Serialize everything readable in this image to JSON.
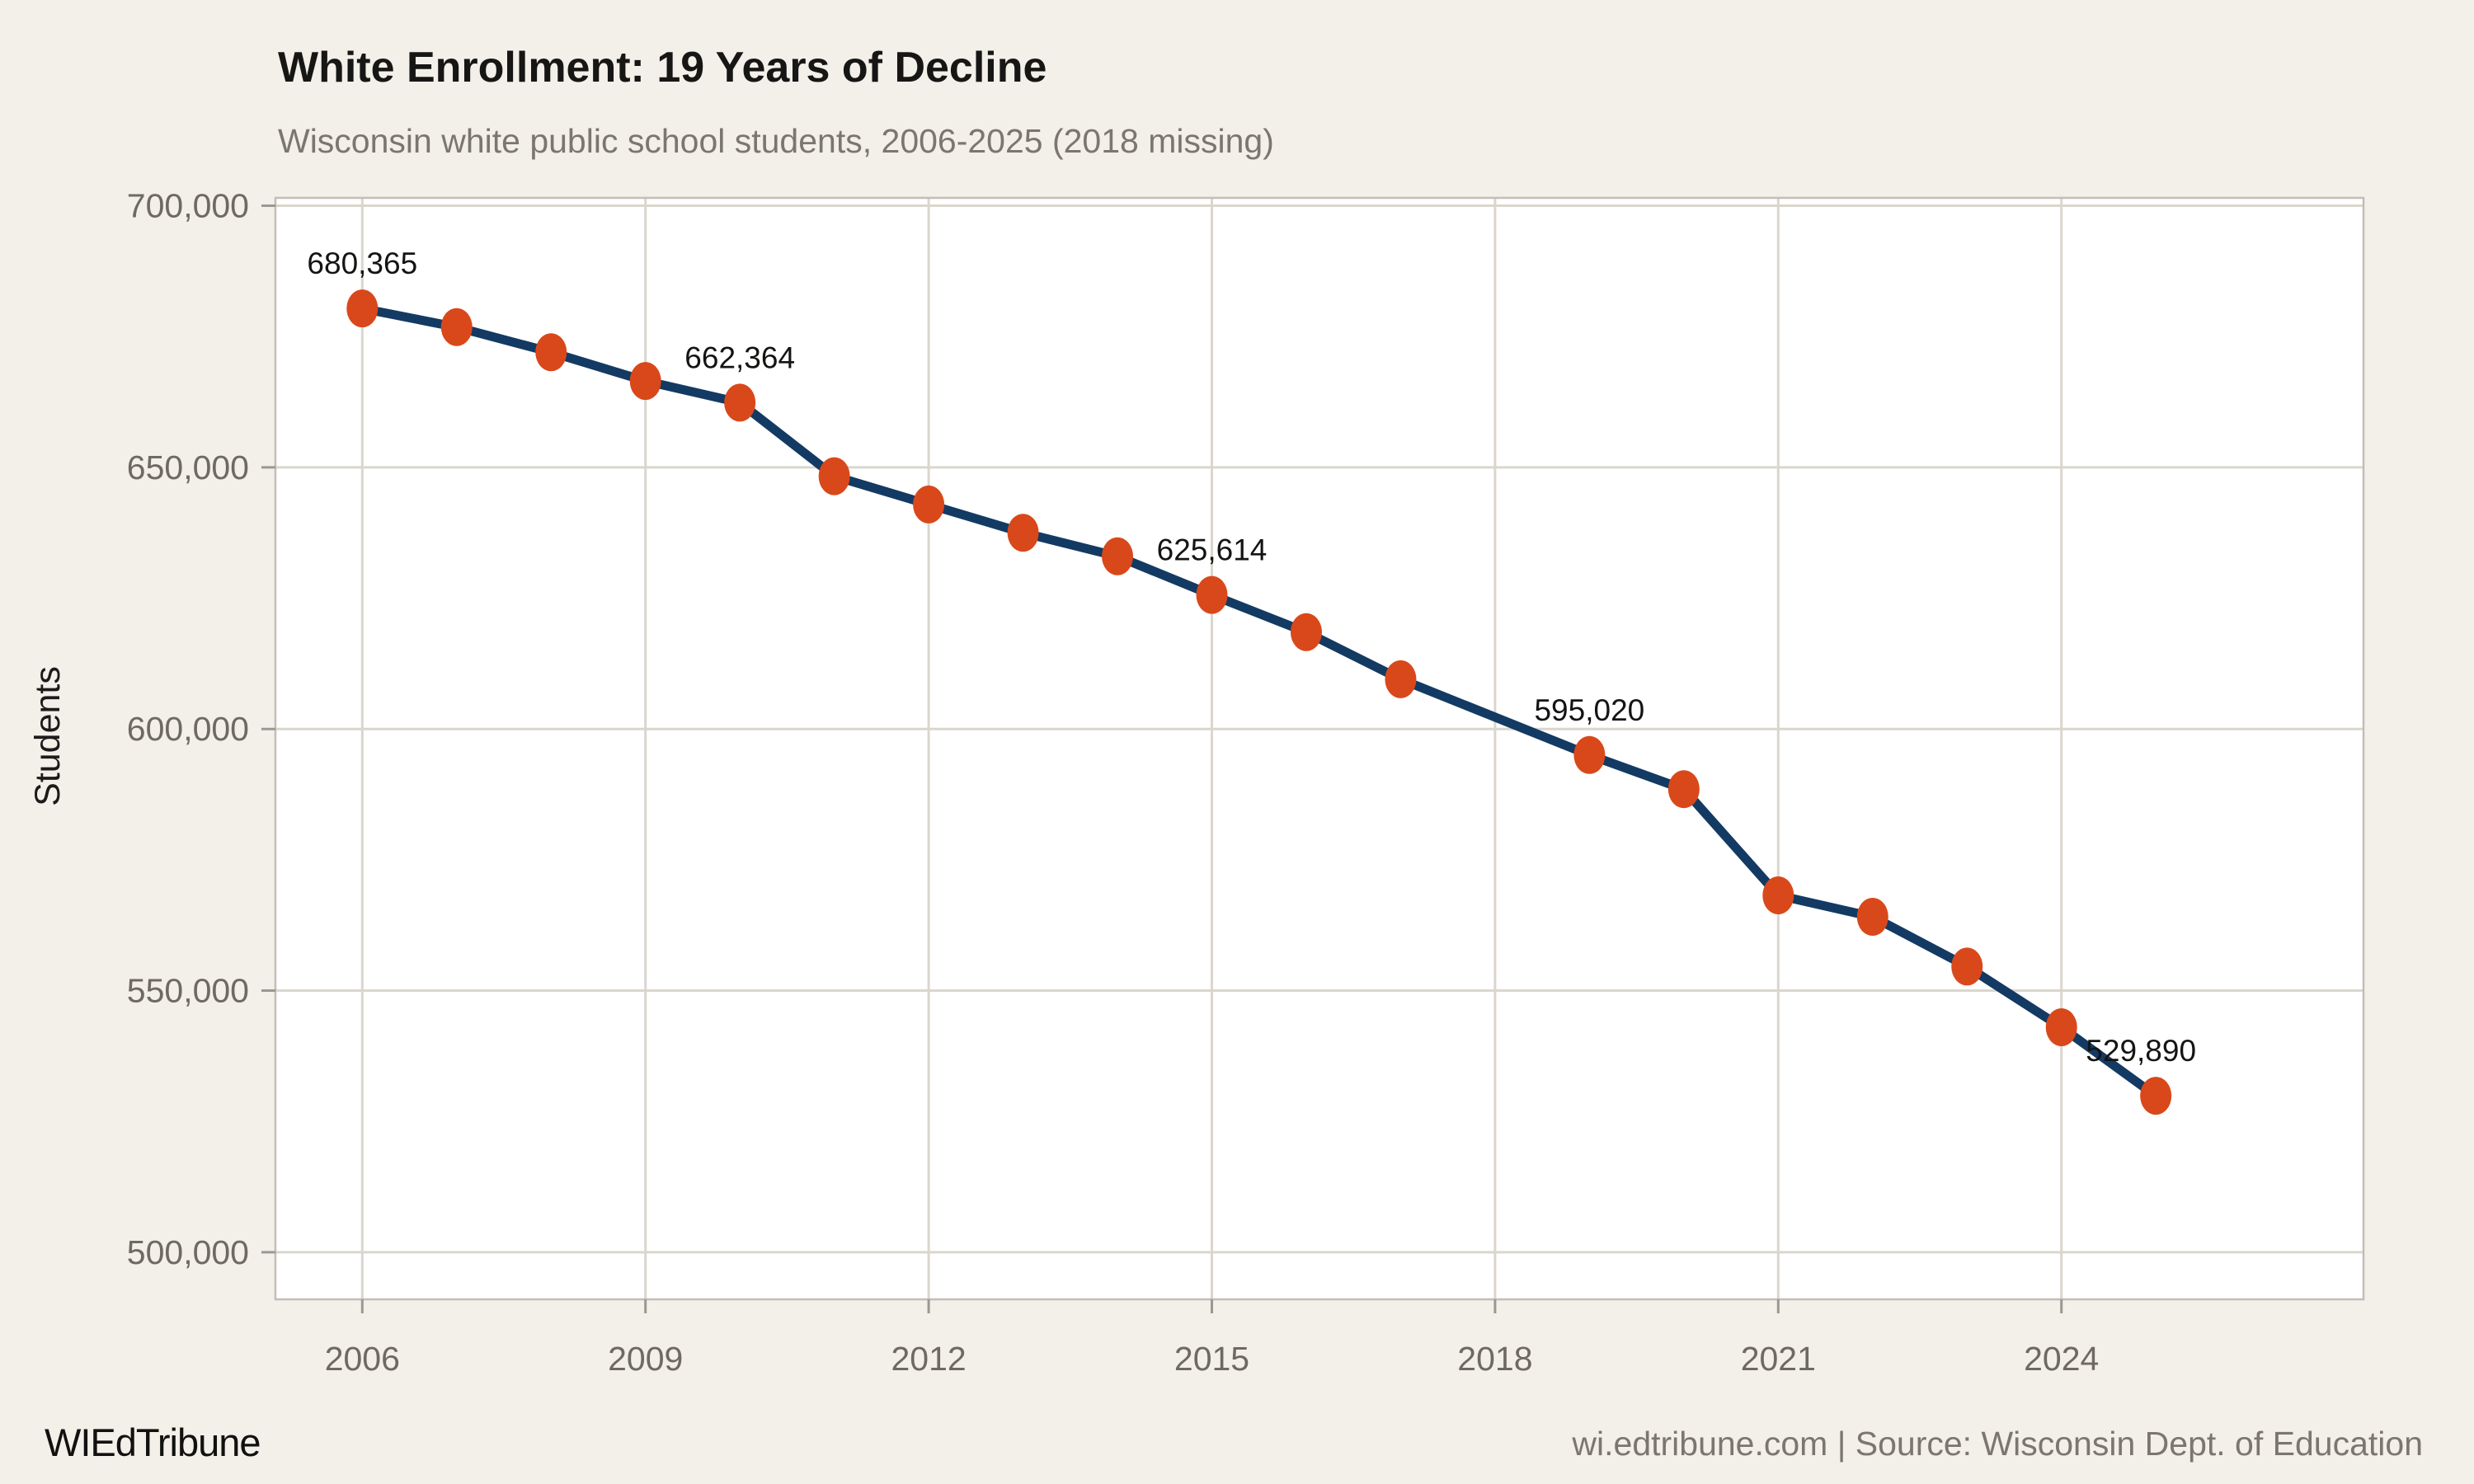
{
  "header": {
    "title": "White Enrollment: 19 Years of Decline",
    "subtitle": "Wisconsin white public school students, 2006-2025 (2018 missing)"
  },
  "footer": {
    "brand": "WIEdTribune",
    "credit": "wi.edtribune.com | Source: Wisconsin Dept. of Education"
  },
  "chart_data": {
    "type": "line",
    "title": "White Enrollment: 19 Years of Decline",
    "subtitle": "Wisconsin white public school students, 2006-2025 (2018 missing)",
    "ylabel": "Students",
    "xlabel": "",
    "series_name": "Wisconsin white public school students",
    "x": [
      2006,
      2007,
      2008,
      2009,
      2010,
      2011,
      2012,
      2013,
      2014,
      2015,
      2016,
      2017,
      2019,
      2020,
      2021,
      2022,
      2023,
      2024,
      2025
    ],
    "values": [
      680365,
      676800,
      672000,
      666500,
      662364,
      648300,
      642900,
      637500,
      633000,
      625614,
      618500,
      609500,
      595020,
      588500,
      568200,
      564100,
      554600,
      543000,
      529890
    ],
    "missing_years": [
      2018
    ],
    "point_labels": [
      {
        "x": 2006,
        "text": "680,365",
        "dx": 0
      },
      {
        "x": 2010,
        "text": "662,364",
        "dx": 0
      },
      {
        "x": 2015,
        "text": "625,614",
        "dx": 0
      },
      {
        "x": 2019,
        "text": "595,020",
        "dx": 0
      },
      {
        "x": 2025,
        "text": "529,890",
        "dx": -18
      }
    ],
    "x_ticks": [
      2006,
      2009,
      2012,
      2015,
      2018,
      2021,
      2024
    ],
    "y_ticks": [
      500000,
      550000,
      600000,
      650000,
      700000
    ],
    "xlim": [
      2005.08,
      2027.2
    ],
    "ylim": [
      491000,
      701500
    ],
    "grid": true,
    "legend_position": "none",
    "colors": {
      "line": "#133a63",
      "marker": "#d9481a",
      "plot_background": "#ffffff",
      "page_background": "#f3efe9",
      "gridline": "#dad6ce",
      "plot_border": "#c2beb6",
      "tick_mark": "#9b9792",
      "tick_label": "#6e6a63",
      "data_label": "#141413"
    }
  }
}
